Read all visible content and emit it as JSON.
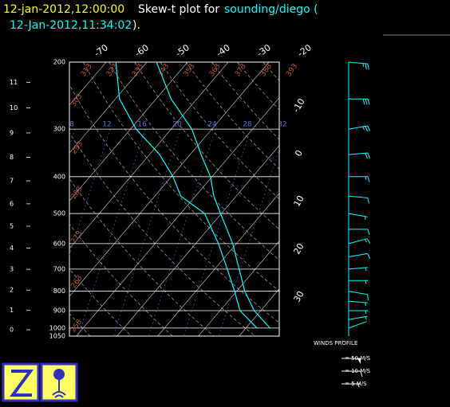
{
  "header": {
    "date": "12-jan-2012,12:00:00",
    "title": "Skew-t plot for",
    "source": "sounding/diego (",
    "run_time": "12-Jan-2012,11:34:02",
    "close": ")."
  },
  "chart_data": {
    "type": "skewt",
    "plim": [
      200,
      1050
    ],
    "pressure_ticks": [
      200,
      300,
      400,
      500,
      600,
      700,
      800,
      900,
      1000,
      1050
    ],
    "height_ticks": [
      0,
      1,
      2,
      3,
      4,
      5,
      6,
      7,
      8,
      9,
      10,
      11
    ],
    "isotherm_ticks": [
      -70,
      -60,
      -50,
      -40,
      -30,
      -20,
      -10,
      0,
      10,
      20,
      30
    ],
    "dry_adiabats": [
      253,
      263,
      273,
      283,
      293,
      303,
      313,
      323,
      333,
      343,
      353,
      363,
      373,
      383,
      393
    ],
    "mixing_ratio_labels": [
      8,
      12,
      16,
      20,
      24,
      28,
      32
    ],
    "series": [
      {
        "color": "#00ffff",
        "pressure": [
          1000,
          900,
          800,
          700,
          600,
          500,
          450,
          400,
          350,
          300,
          250,
          200
        ],
        "values": [
          25.9,
          18.4,
          12.0,
          6.0,
          -0.9,
          -10.2,
          -15.5,
          -20.4,
          -27.3,
          -34.9,
          -46.3,
          -57.6
        ]
      },
      {
        "color": "#00ffff",
        "pressure": [
          1000,
          900,
          800,
          700,
          600,
          500,
          450,
          400,
          350,
          300,
          250,
          200
        ],
        "values": [
          22.7,
          14.9,
          9.5,
          3.1,
          -4.4,
          -14.1,
          -23.6,
          -29.6,
          -37.5,
          -48.6,
          -59.0,
          -67.6
        ]
      }
    ],
    "winds": {
      "color": "#00ffff",
      "pressure": [
        1000,
        950,
        900,
        850,
        800,
        750,
        700,
        650,
        600,
        550,
        500,
        450,
        400,
        350,
        300,
        250,
        200
      ],
      "speed": [
        3,
        5,
        6,
        8,
        10,
        8,
        6,
        12,
        15,
        10,
        8,
        12,
        15,
        20,
        25,
        30,
        25
      ],
      "direction": [
        250,
        260,
        270,
        275,
        280,
        270,
        265,
        260,
        255,
        270,
        280,
        275,
        270,
        265,
        260,
        270,
        275
      ]
    },
    "wind_legend": {
      "title": "WINDS PROFILE",
      "items": [
        {
          "speed": 50,
          "label": "= 50 M/S"
        },
        {
          "speed": 10,
          "label": "= 10 M/S"
        },
        {
          "speed": 5,
          "label": "= 5 M/S"
        }
      ]
    }
  }
}
